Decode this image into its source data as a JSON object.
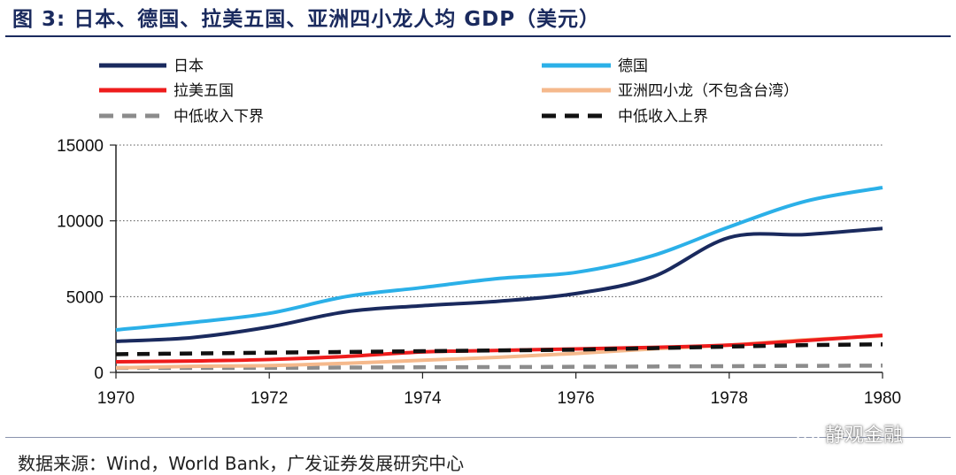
{
  "header": {
    "title": "图 3:  日本、德国、拉美五国、亚洲四小龙人均 GDP（美元）"
  },
  "footer": {
    "source": "数据来源：Wind，World Bank，广发证券发展研究中心",
    "watermark": "静观金融"
  },
  "chart_data": {
    "type": "line",
    "title": "图 3:  日本、德国、拉美五国、亚洲四小龙人均 GDP（美元）",
    "xlabel": "",
    "ylabel": "",
    "xlim": [
      1970,
      1980
    ],
    "ylim": [
      0,
      15000
    ],
    "x_ticks": [
      "1970",
      "1972",
      "1974",
      "1976",
      "1978",
      "1980"
    ],
    "y_ticks": [
      "0",
      "5000",
      "10000",
      "15000"
    ],
    "grid": "horizontal-dotted",
    "x": [
      1970,
      1971,
      1972,
      1973,
      1974,
      1975,
      1976,
      1977,
      1978,
      1979,
      1980
    ],
    "series": [
      {
        "name": "日本",
        "color": "#1a2a5e",
        "style": "solid",
        "values": [
          2050,
          2300,
          3000,
          4000,
          4400,
          4700,
          5200,
          6300,
          8900,
          9100,
          9500
        ]
      },
      {
        "name": "德国",
        "color": "#2bb0e8",
        "style": "solid",
        "values": [
          2800,
          3300,
          3900,
          5000,
          5600,
          6200,
          6600,
          7700,
          9600,
          11300,
          12200
        ]
      },
      {
        "name": "拉美五国",
        "color": "#ee1c1c",
        "style": "solid",
        "values": [
          700,
          750,
          850,
          1050,
          1350,
          1450,
          1550,
          1650,
          1800,
          2100,
          2450
        ]
      },
      {
        "name": "亚洲四小龙（不包含台湾）",
        "color": "#f5b98c",
        "style": "solid",
        "values": [
          300,
          400,
          450,
          600,
          800,
          1000,
          1250,
          1550,
          1800,
          2150,
          2400
        ]
      },
      {
        "name": "中低收入下界",
        "color": "#8c8c8c",
        "style": "dashed",
        "values": [
          290,
          290,
          300,
          320,
          340,
          350,
          370,
          390,
          410,
          430,
          450
        ]
      },
      {
        "name": "中低收入上界",
        "color": "#111111",
        "style": "dashed",
        "values": [
          1200,
          1250,
          1300,
          1350,
          1400,
          1450,
          1500,
          1600,
          1700,
          1800,
          1850
        ]
      }
    ]
  }
}
